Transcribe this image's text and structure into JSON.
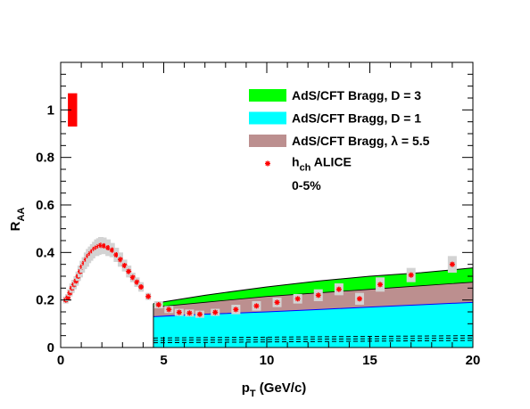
{
  "chart_data": {
    "type": "scatter",
    "xlabel": {
      "main": "p",
      "sub": "T",
      "suffix": " (GeV/c)"
    },
    "ylabel": {
      "main": "R",
      "sub": "AA"
    },
    "xlim": [
      0,
      20
    ],
    "ylim": [
      0,
      1.2
    ],
    "xticks": [
      {
        "v": 0,
        "label": "0"
      },
      {
        "v": 5,
        "label": "5"
      },
      {
        "v": 10,
        "label": "10"
      },
      {
        "v": 15,
        "label": "15"
      },
      {
        "v": 20,
        "label": "20"
      }
    ],
    "yticks": [
      {
        "v": 0,
        "label": "0"
      },
      {
        "v": 0.2,
        "label": "0.2"
      },
      {
        "v": 0.4,
        "label": "0.4"
      },
      {
        "v": 0.6,
        "label": "0.6"
      },
      {
        "v": 0.8,
        "label": "0.8"
      },
      {
        "v": 1.0,
        "label": "1"
      }
    ],
    "normalization_box": {
      "x": [
        0.35,
        0.8
      ],
      "y": [
        0.93,
        1.07
      ],
      "color": "#ff0000"
    },
    "bands": [
      {
        "name": "AdS/CFT Bragg, D = 1",
        "color": "#00ffff",
        "x": [
          4.5,
          7,
          10,
          12.5,
          15,
          17.5,
          20
        ],
        "low": [
          0.0,
          0.0,
          0.0,
          0.0,
          0.0,
          0.0,
          0.0
        ],
        "high": [
          0.13,
          0.14,
          0.15,
          0.16,
          0.17,
          0.18,
          0.19
        ]
      },
      {
        "name": "AdS/CFT Bragg, λ = 5.5",
        "color": "#bc8f8f",
        "x": [
          4.5,
          7,
          10,
          12.5,
          15,
          17.5,
          20
        ],
        "low": [
          0.13,
          0.14,
          0.15,
          0.16,
          0.17,
          0.18,
          0.19
        ],
        "high": [
          0.17,
          0.19,
          0.215,
          0.23,
          0.245,
          0.26,
          0.275
        ]
      },
      {
        "name": "AdS/CFT Bragg, D = 3",
        "color": "#00ff00",
        "x": [
          4.5,
          7,
          10,
          12.5,
          15,
          17.5,
          20
        ],
        "low": [
          0.17,
          0.19,
          0.215,
          0.23,
          0.245,
          0.26,
          0.275
        ],
        "high": [
          0.185,
          0.22,
          0.255,
          0.28,
          0.3,
          0.315,
          0.335
        ]
      }
    ],
    "dashed_lines": [
      {
        "x": [
          4.5,
          20
        ],
        "y": [
          0.02,
          0.03
        ]
      },
      {
        "x": [
          4.5,
          20
        ],
        "y": [
          0.03,
          0.04
        ]
      },
      {
        "x": [
          4.5,
          20
        ],
        "y": [
          0.04,
          0.05
        ]
      }
    ],
    "series": [
      {
        "name": "h_ch ALICE",
        "color": "#ff0000",
        "points": [
          {
            "x": 0.25,
            "y": 0.2,
            "sys": 0.015
          },
          {
            "x": 0.35,
            "y": 0.21,
            "sys": 0.015
          },
          {
            "x": 0.45,
            "y": 0.23,
            "sys": 0.015
          },
          {
            "x": 0.55,
            "y": 0.25,
            "sys": 0.02
          },
          {
            "x": 0.65,
            "y": 0.265,
            "sys": 0.02
          },
          {
            "x": 0.75,
            "y": 0.28,
            "sys": 0.02
          },
          {
            "x": 0.85,
            "y": 0.3,
            "sys": 0.02
          },
          {
            "x": 0.95,
            "y": 0.32,
            "sys": 0.025
          },
          {
            "x": 1.05,
            "y": 0.34,
            "sys": 0.025
          },
          {
            "x": 1.15,
            "y": 0.355,
            "sys": 0.025
          },
          {
            "x": 1.25,
            "y": 0.37,
            "sys": 0.03
          },
          {
            "x": 1.35,
            "y": 0.385,
            "sys": 0.03
          },
          {
            "x": 1.45,
            "y": 0.395,
            "sys": 0.03
          },
          {
            "x": 1.55,
            "y": 0.405,
            "sys": 0.03
          },
          {
            "x": 1.65,
            "y": 0.415,
            "sys": 0.03
          },
          {
            "x": 1.75,
            "y": 0.42,
            "sys": 0.035
          },
          {
            "x": 1.85,
            "y": 0.425,
            "sys": 0.035
          },
          {
            "x": 1.95,
            "y": 0.43,
            "sys": 0.035
          },
          {
            "x": 2.1,
            "y": 0.428,
            "sys": 0.035
          },
          {
            "x": 2.3,
            "y": 0.42,
            "sys": 0.035
          },
          {
            "x": 2.5,
            "y": 0.41,
            "sys": 0.03
          },
          {
            "x": 2.7,
            "y": 0.39,
            "sys": 0.03
          },
          {
            "x": 2.9,
            "y": 0.37,
            "sys": 0.03
          },
          {
            "x": 3.1,
            "y": 0.345,
            "sys": 0.025
          },
          {
            "x": 3.3,
            "y": 0.32,
            "sys": 0.025
          },
          {
            "x": 3.5,
            "y": 0.295,
            "sys": 0.02
          },
          {
            "x": 3.7,
            "y": 0.275,
            "sys": 0.02
          },
          {
            "x": 3.9,
            "y": 0.255,
            "sys": 0.02
          },
          {
            "x": 4.25,
            "y": 0.215,
            "sys": 0.015
          },
          {
            "x": 4.75,
            "y": 0.18,
            "sys": 0.015
          },
          {
            "x": 5.25,
            "y": 0.16,
            "sys": 0.015
          },
          {
            "x": 5.75,
            "y": 0.148,
            "sys": 0.015
          },
          {
            "x": 6.25,
            "y": 0.145,
            "sys": 0.015
          },
          {
            "x": 6.75,
            "y": 0.14,
            "sys": 0.015
          },
          {
            "x": 7.5,
            "y": 0.148,
            "sys": 0.015
          },
          {
            "x": 8.5,
            "y": 0.16,
            "sys": 0.02
          },
          {
            "x": 9.5,
            "y": 0.175,
            "sys": 0.02
          },
          {
            "x": 10.5,
            "y": 0.19,
            "sys": 0.02
          },
          {
            "x": 11.5,
            "y": 0.205,
            "sys": 0.02
          },
          {
            "x": 12.5,
            "y": 0.22,
            "sys": 0.025
          },
          {
            "x": 13.5,
            "y": 0.245,
            "sys": 0.025
          },
          {
            "x": 14.5,
            "y": 0.205,
            "sys": 0.025
          },
          {
            "x": 15.5,
            "y": 0.265,
            "sys": 0.03
          },
          {
            "x": 17.0,
            "y": 0.305,
            "sys": 0.03
          },
          {
            "x": 19.0,
            "y": 0.35,
            "sys": 0.035
          }
        ]
      }
    ],
    "legend": {
      "position": "top-right",
      "entries": [
        {
          "type": "box",
          "color": "#00ff00",
          "label": "AdS/CFT Bragg, D = 3"
        },
        {
          "type": "box",
          "color": "#00ffff",
          "label": "AdS/CFT Bragg, D = 1"
        },
        {
          "type": "box",
          "color": "#bc8f8f",
          "label": "AdS/CFT Bragg, λ = 5.5"
        },
        {
          "type": "marker",
          "color": "#ff0000",
          "label_main": "h",
          "label_sub": "ch",
          "label_suffix": " ALICE"
        },
        {
          "type": "none",
          "label": "0-5%"
        }
      ]
    }
  }
}
